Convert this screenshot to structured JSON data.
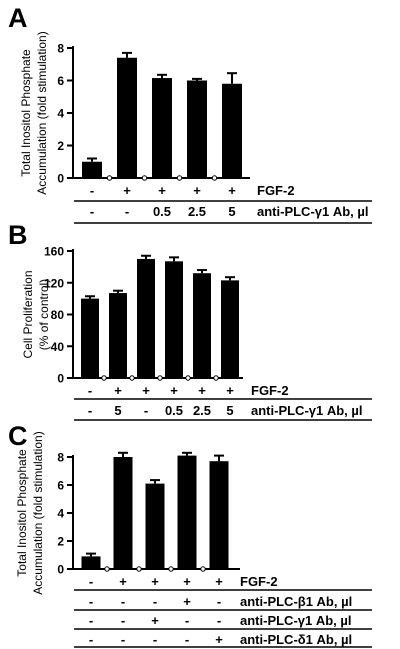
{
  "chart_data": [
    {
      "type": "bar",
      "panel_label": "A",
      "ylabel_lines": [
        "Total Inositol Phosphate",
        "Accumulation (fold stimulation)"
      ],
      "ylim": [
        0,
        8
      ],
      "yticks": [
        "0",
        "2",
        "4",
        "6",
        "8"
      ],
      "values": [
        1.0,
        7.4,
        6.15,
        6.0,
        5.8
      ],
      "errors": [
        0.2,
        0.3,
        0.2,
        0.1,
        0.65
      ],
      "conditions": [
        {
          "label": "FGF-2",
          "values": [
            "-",
            "+",
            "+",
            "+",
            "+"
          ]
        },
        {
          "label": "anti-PLC-γ1 Ab, µl",
          "values": [
            "-",
            "-",
            "0.5",
            "2.5",
            "5"
          ]
        }
      ]
    },
    {
      "type": "bar",
      "panel_label": "B",
      "ylabel_lines": [
        "Cell Proliferation",
        "(% of control)"
      ],
      "ylim": [
        0,
        160
      ],
      "yticks": [
        "0",
        "40",
        "80",
        "120",
        "160"
      ],
      "values": [
        100,
        107,
        150,
        147,
        132,
        123
      ],
      "errors": [
        3,
        3,
        4,
        5,
        4,
        4
      ],
      "conditions": [
        {
          "label": "FGF-2",
          "values": [
            "-",
            "+",
            "+",
            "+",
            "+",
            "+"
          ]
        },
        {
          "label": "anti-PLC-γ1 Ab, µl",
          "values": [
            "-",
            "5",
            "-",
            "0.5",
            "2.5",
            "5"
          ]
        }
      ]
    },
    {
      "type": "bar",
      "panel_label": "C",
      "ylabel_lines": [
        "Total Inositol Phosphate",
        "Accumulation (fold stimulation)"
      ],
      "ylim": [
        0,
        8
      ],
      "yticks": [
        "0",
        "2",
        "4",
        "6",
        "8"
      ],
      "values": [
        0.9,
        8.0,
        6.1,
        8.1,
        7.7
      ],
      "errors": [
        0.2,
        0.3,
        0.25,
        0.2,
        0.4
      ],
      "conditions": [
        {
          "label": "FGF-2",
          "values": [
            "-",
            "+",
            "+",
            "+",
            "+"
          ]
        },
        {
          "label": "anti-PLC-β1 Ab, µl",
          "values": [
            "-",
            "-",
            "-",
            "+",
            "-"
          ]
        },
        {
          "label": "anti-PLC-γ1 Ab, µl",
          "values": [
            "-",
            "-",
            "+",
            "-",
            "-"
          ]
        },
        {
          "label": "anti-PLC-δ1 Ab, µl",
          "values": [
            "-",
            "-",
            "-",
            "-",
            "+"
          ]
        }
      ]
    }
  ]
}
